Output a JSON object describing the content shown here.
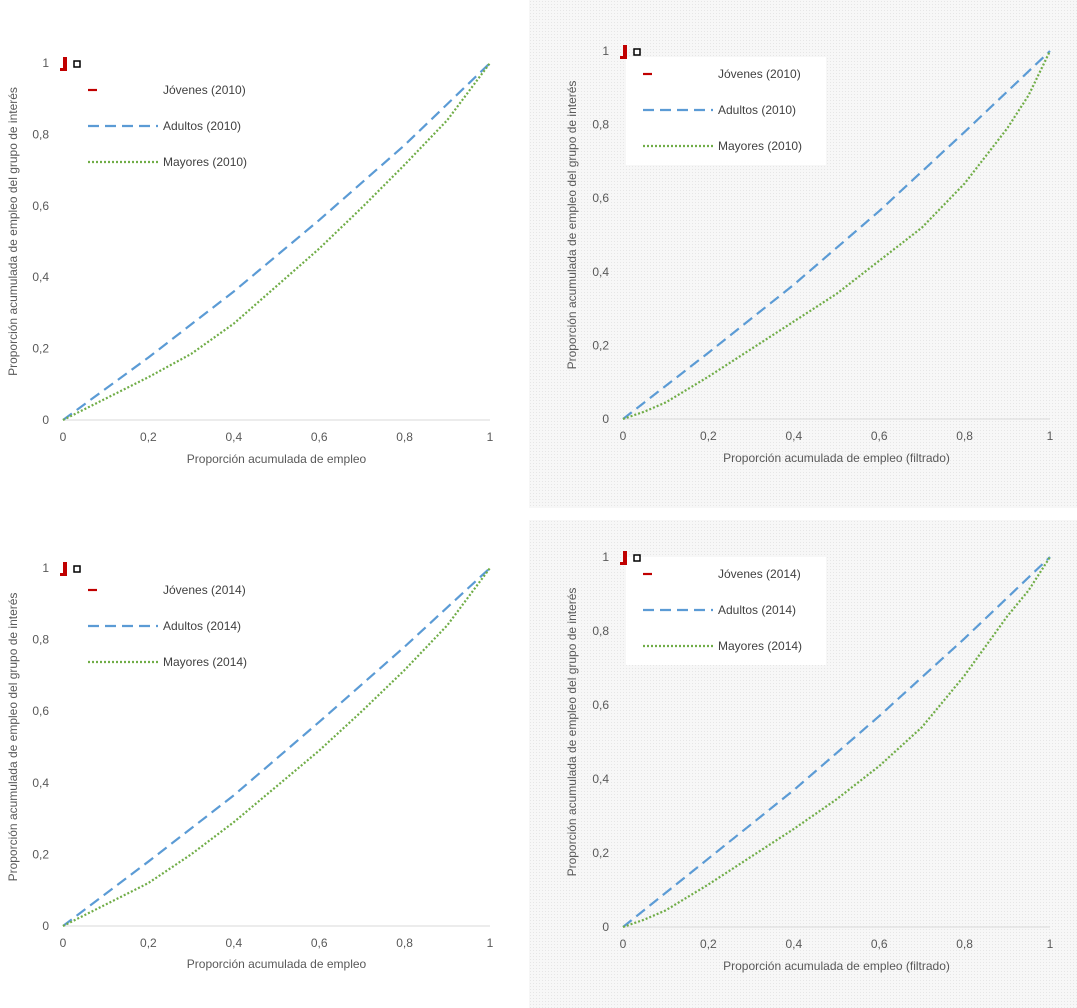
{
  "colors": {
    "jovenes": "#c00000",
    "adultos": "#5b9bd5",
    "mayores": "#70ad47",
    "axis": "#d9d9d9",
    "text": "#595959"
  },
  "icons": {
    "legend_marker": "red-bar-with-square-icon"
  },
  "chart_data": [
    {
      "type": "line",
      "panel": "top-left",
      "xlabel": "Proporción acumulada de empleo",
      "ylabel": "Proporción acumulada de empleo del grupo de interés",
      "xlim": [
        0,
        1
      ],
      "ylim": [
        0,
        1
      ],
      "x_ticks": [
        "0",
        "0,2",
        "0,4",
        "0,6",
        "0,8",
        "1"
      ],
      "y_ticks": [
        "0",
        "0,2",
        "0,4",
        "0,6",
        "0,8",
        "1"
      ],
      "grid": false,
      "legend_position": "top-left",
      "series": [
        {
          "name": "Jóvenes (2010)",
          "style": "solid",
          "x": [],
          "y": []
        },
        {
          "name": "Adultos (2010)",
          "style": "dashed",
          "x": [
            0,
            0.2,
            0.4,
            0.6,
            0.8,
            1
          ],
          "y": [
            0,
            0.175,
            0.36,
            0.56,
            0.77,
            1
          ]
        },
        {
          "name": "Mayores (2010)",
          "style": "dotted",
          "x": [
            0,
            0.1,
            0.2,
            0.3,
            0.4,
            0.5,
            0.6,
            0.7,
            0.8,
            0.9,
            1
          ],
          "y": [
            0,
            0.06,
            0.12,
            0.185,
            0.27,
            0.375,
            0.48,
            0.595,
            0.715,
            0.84,
            1
          ]
        }
      ]
    },
    {
      "type": "line",
      "panel": "top-right",
      "xlabel": "Proporción acumulada de empleo (filtrado)",
      "ylabel": "Proporción acumulada de empleo del grupo de interés",
      "xlim": [
        0,
        1
      ],
      "ylim": [
        0,
        1
      ],
      "x_ticks": [
        "0",
        "0,2",
        "0,4",
        "0,6",
        "0,8",
        "1"
      ],
      "y_ticks": [
        "0",
        "0,2",
        "0,4",
        "0,6",
        "0,8",
        "1"
      ],
      "grid": false,
      "legend_position": "top-left",
      "series": [
        {
          "name": "Jóvenes (2010)",
          "style": "solid",
          "x": [],
          "y": []
        },
        {
          "name": "Adultos (2010)",
          "style": "dashed",
          "x": [
            0,
            0.2,
            0.4,
            0.6,
            0.8,
            1
          ],
          "y": [
            0,
            0.18,
            0.365,
            0.565,
            0.78,
            1
          ]
        },
        {
          "name": "Mayores (2010)",
          "style": "dotted",
          "x": [
            0,
            0.05,
            0.1,
            0.2,
            0.3,
            0.4,
            0.5,
            0.6,
            0.7,
            0.8,
            0.9,
            0.95,
            1
          ],
          "y": [
            0,
            0.02,
            0.045,
            0.115,
            0.19,
            0.265,
            0.34,
            0.43,
            0.52,
            0.64,
            0.79,
            0.88,
            1
          ]
        }
      ]
    },
    {
      "type": "line",
      "panel": "bottom-left",
      "xlabel": "Proporción acumulada de empleo",
      "ylabel": "Proporción acumulada de empleo del grupo de interés",
      "xlim": [
        0,
        1
      ],
      "ylim": [
        0,
        1
      ],
      "x_ticks": [
        "0",
        "0,2",
        "0,4",
        "0,6",
        "0,8",
        "1"
      ],
      "y_ticks": [
        "0",
        "0,2",
        "0,4",
        "0,6",
        "0,8",
        "1"
      ],
      "grid": false,
      "legend_position": "top-left",
      "series": [
        {
          "name": "Jóvenes (2014)",
          "style": "solid",
          "x": [],
          "y": []
        },
        {
          "name": "Adultos (2014)",
          "style": "dashed",
          "x": [
            0,
            0.2,
            0.4,
            0.6,
            0.8,
            1
          ],
          "y": [
            0,
            0.18,
            0.365,
            0.57,
            0.78,
            1
          ]
        },
        {
          "name": "Mayores (2014)",
          "style": "dotted",
          "x": [
            0,
            0.1,
            0.2,
            0.3,
            0.4,
            0.5,
            0.6,
            0.7,
            0.8,
            0.9,
            1
          ],
          "y": [
            0,
            0.06,
            0.12,
            0.2,
            0.29,
            0.39,
            0.49,
            0.6,
            0.715,
            0.84,
            1
          ]
        }
      ]
    },
    {
      "type": "line",
      "panel": "bottom-right",
      "xlabel": "Proporción acumulada de empleo (filtrado)",
      "ylabel": "Proporción acumulada de empleo del grupo de interés",
      "xlim": [
        0,
        1
      ],
      "ylim": [
        0,
        1
      ],
      "x_ticks": [
        "0",
        "0,2",
        "0,4",
        "0,6",
        "0,8",
        "1"
      ],
      "y_ticks": [
        "0",
        "0,2",
        "0,4",
        "0,6",
        "0,8",
        "1"
      ],
      "grid": false,
      "legend_position": "top-left",
      "series": [
        {
          "name": "Jóvenes (2014)",
          "style": "solid",
          "x": [],
          "y": []
        },
        {
          "name": "Adultos (2014)",
          "style": "dashed",
          "x": [
            0,
            0.2,
            0.4,
            0.6,
            0.8,
            1
          ],
          "y": [
            0,
            0.185,
            0.37,
            0.57,
            0.78,
            1
          ]
        },
        {
          "name": "Mayores (2014)",
          "style": "dotted",
          "x": [
            0,
            0.05,
            0.1,
            0.2,
            0.3,
            0.4,
            0.5,
            0.6,
            0.7,
            0.8,
            0.9,
            0.95,
            1
          ],
          "y": [
            0,
            0.02,
            0.045,
            0.115,
            0.19,
            0.265,
            0.345,
            0.435,
            0.54,
            0.68,
            0.84,
            0.91,
            1
          ]
        }
      ]
    }
  ]
}
